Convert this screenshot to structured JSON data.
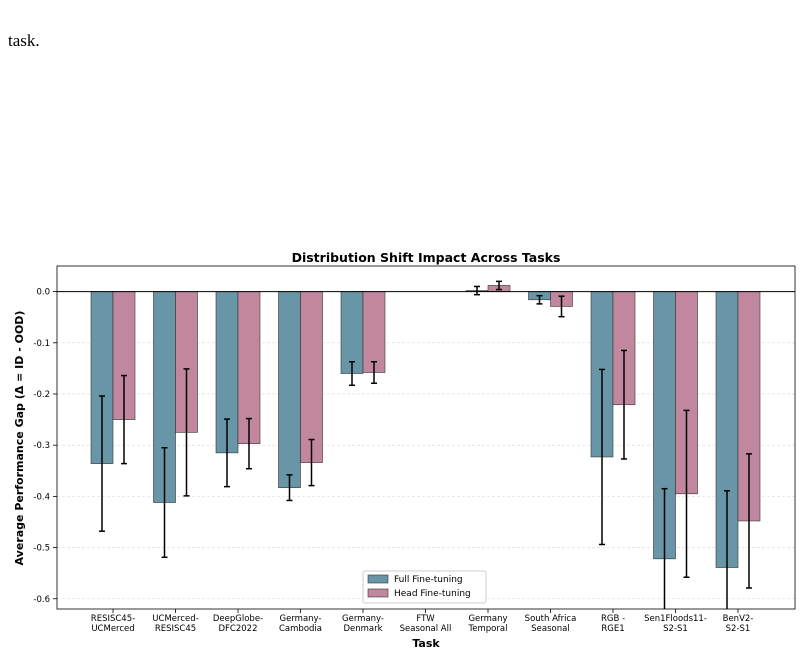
{
  "fragment": "task.",
  "chart_data": {
    "type": "bar",
    "title": "Distribution Shift Impact Across Tasks",
    "xlabel": "Task",
    "ylabel": "Average Performance Gap (Δ = ID - OOD)",
    "categories": [
      "RESISC45-\nUCMerced",
      "UCMerced-\nRESISC45",
      "DeepGlobe-\nDFC2022",
      "Germany-\nCambodia",
      "Germany-\nDenmark",
      "FTW\nSeasonal All",
      "Germany\nTemporal",
      "South Africa\nSeasonal",
      "RGB -\nRGE1",
      "Sen1Floods11-\nS2-S1",
      "BenV2-\nS2-S1"
    ],
    "series": [
      {
        "name": "Full Fine-tuning",
        "color": "#6896a6",
        "values": [
          -0.336,
          -0.412,
          -0.315,
          -0.383,
          -0.16,
          null,
          0.002,
          -0.016,
          -0.323,
          -0.522,
          -0.539
        ],
        "errors": [
          0.132,
          0.107,
          0.066,
          0.025,
          0.023,
          null,
          0.008,
          0.008,
          0.171,
          0.137,
          0.15
        ]
      },
      {
        "name": "Head Fine-tuning",
        "color": "#c0879f",
        "values": [
          -0.25,
          -0.275,
          -0.297,
          -0.334,
          -0.158,
          null,
          0.012,
          -0.029,
          -0.221,
          -0.395,
          -0.448
        ],
        "errors": [
          0.086,
          0.124,
          0.049,
          0.045,
          0.021,
          null,
          0.008,
          0.02,
          0.106,
          0.163,
          0.131
        ]
      }
    ],
    "ylim": [
      -0.62,
      0.05
    ],
    "yticks": [
      {
        "value": 0,
        "label": "0.0"
      },
      -0.1,
      -0.2,
      -0.3,
      -0.4,
      -0.5,
      -0.6
    ],
    "grid": true,
    "legend": "lower center"
  }
}
